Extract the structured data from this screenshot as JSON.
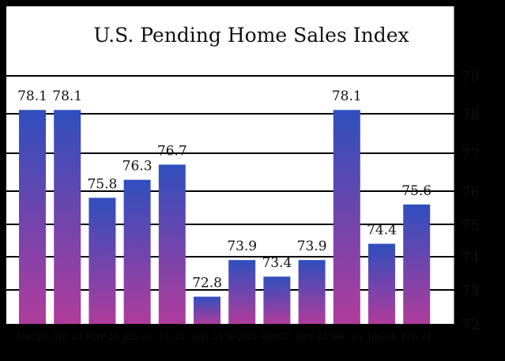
{
  "chart_data": {
    "type": "bar",
    "title": "U.S. Pending Home Sales Index",
    "categories": [
      "Mar 23",
      "Apr 23",
      "May 23",
      "Jun 23",
      "Jul 23",
      "Aug 23",
      "Sep 23",
      "Oct 23",
      "Nov 23",
      "Dec 23",
      "Jan 24",
      "Feb 24"
    ],
    "values": [
      78.1,
      78.1,
      75.8,
      76.3,
      76.7,
      72.8,
      73.9,
      73.4,
      73.9,
      78.1,
      74.4,
      75.6
    ],
    "value_labels": [
      "78.1",
      "78.1",
      "75.8",
      "76.3",
      "76.7",
      "72.8",
      "73.9",
      "73.4",
      "73.9",
      "78.1",
      "74.4",
      "75.6"
    ],
    "yticks": [
      "72",
      "73",
      "74",
      "75",
      "76",
      "77",
      "78",
      "79"
    ],
    "ylim": [
      72,
      79
    ],
    "axis_position": "right",
    "grid": true,
    "colors": {
      "bar_top": "#2f4fbe",
      "bar_bottom": "#b03c9c",
      "background": "#ffffff",
      "frame": "#000000",
      "text": "#111111"
    }
  }
}
